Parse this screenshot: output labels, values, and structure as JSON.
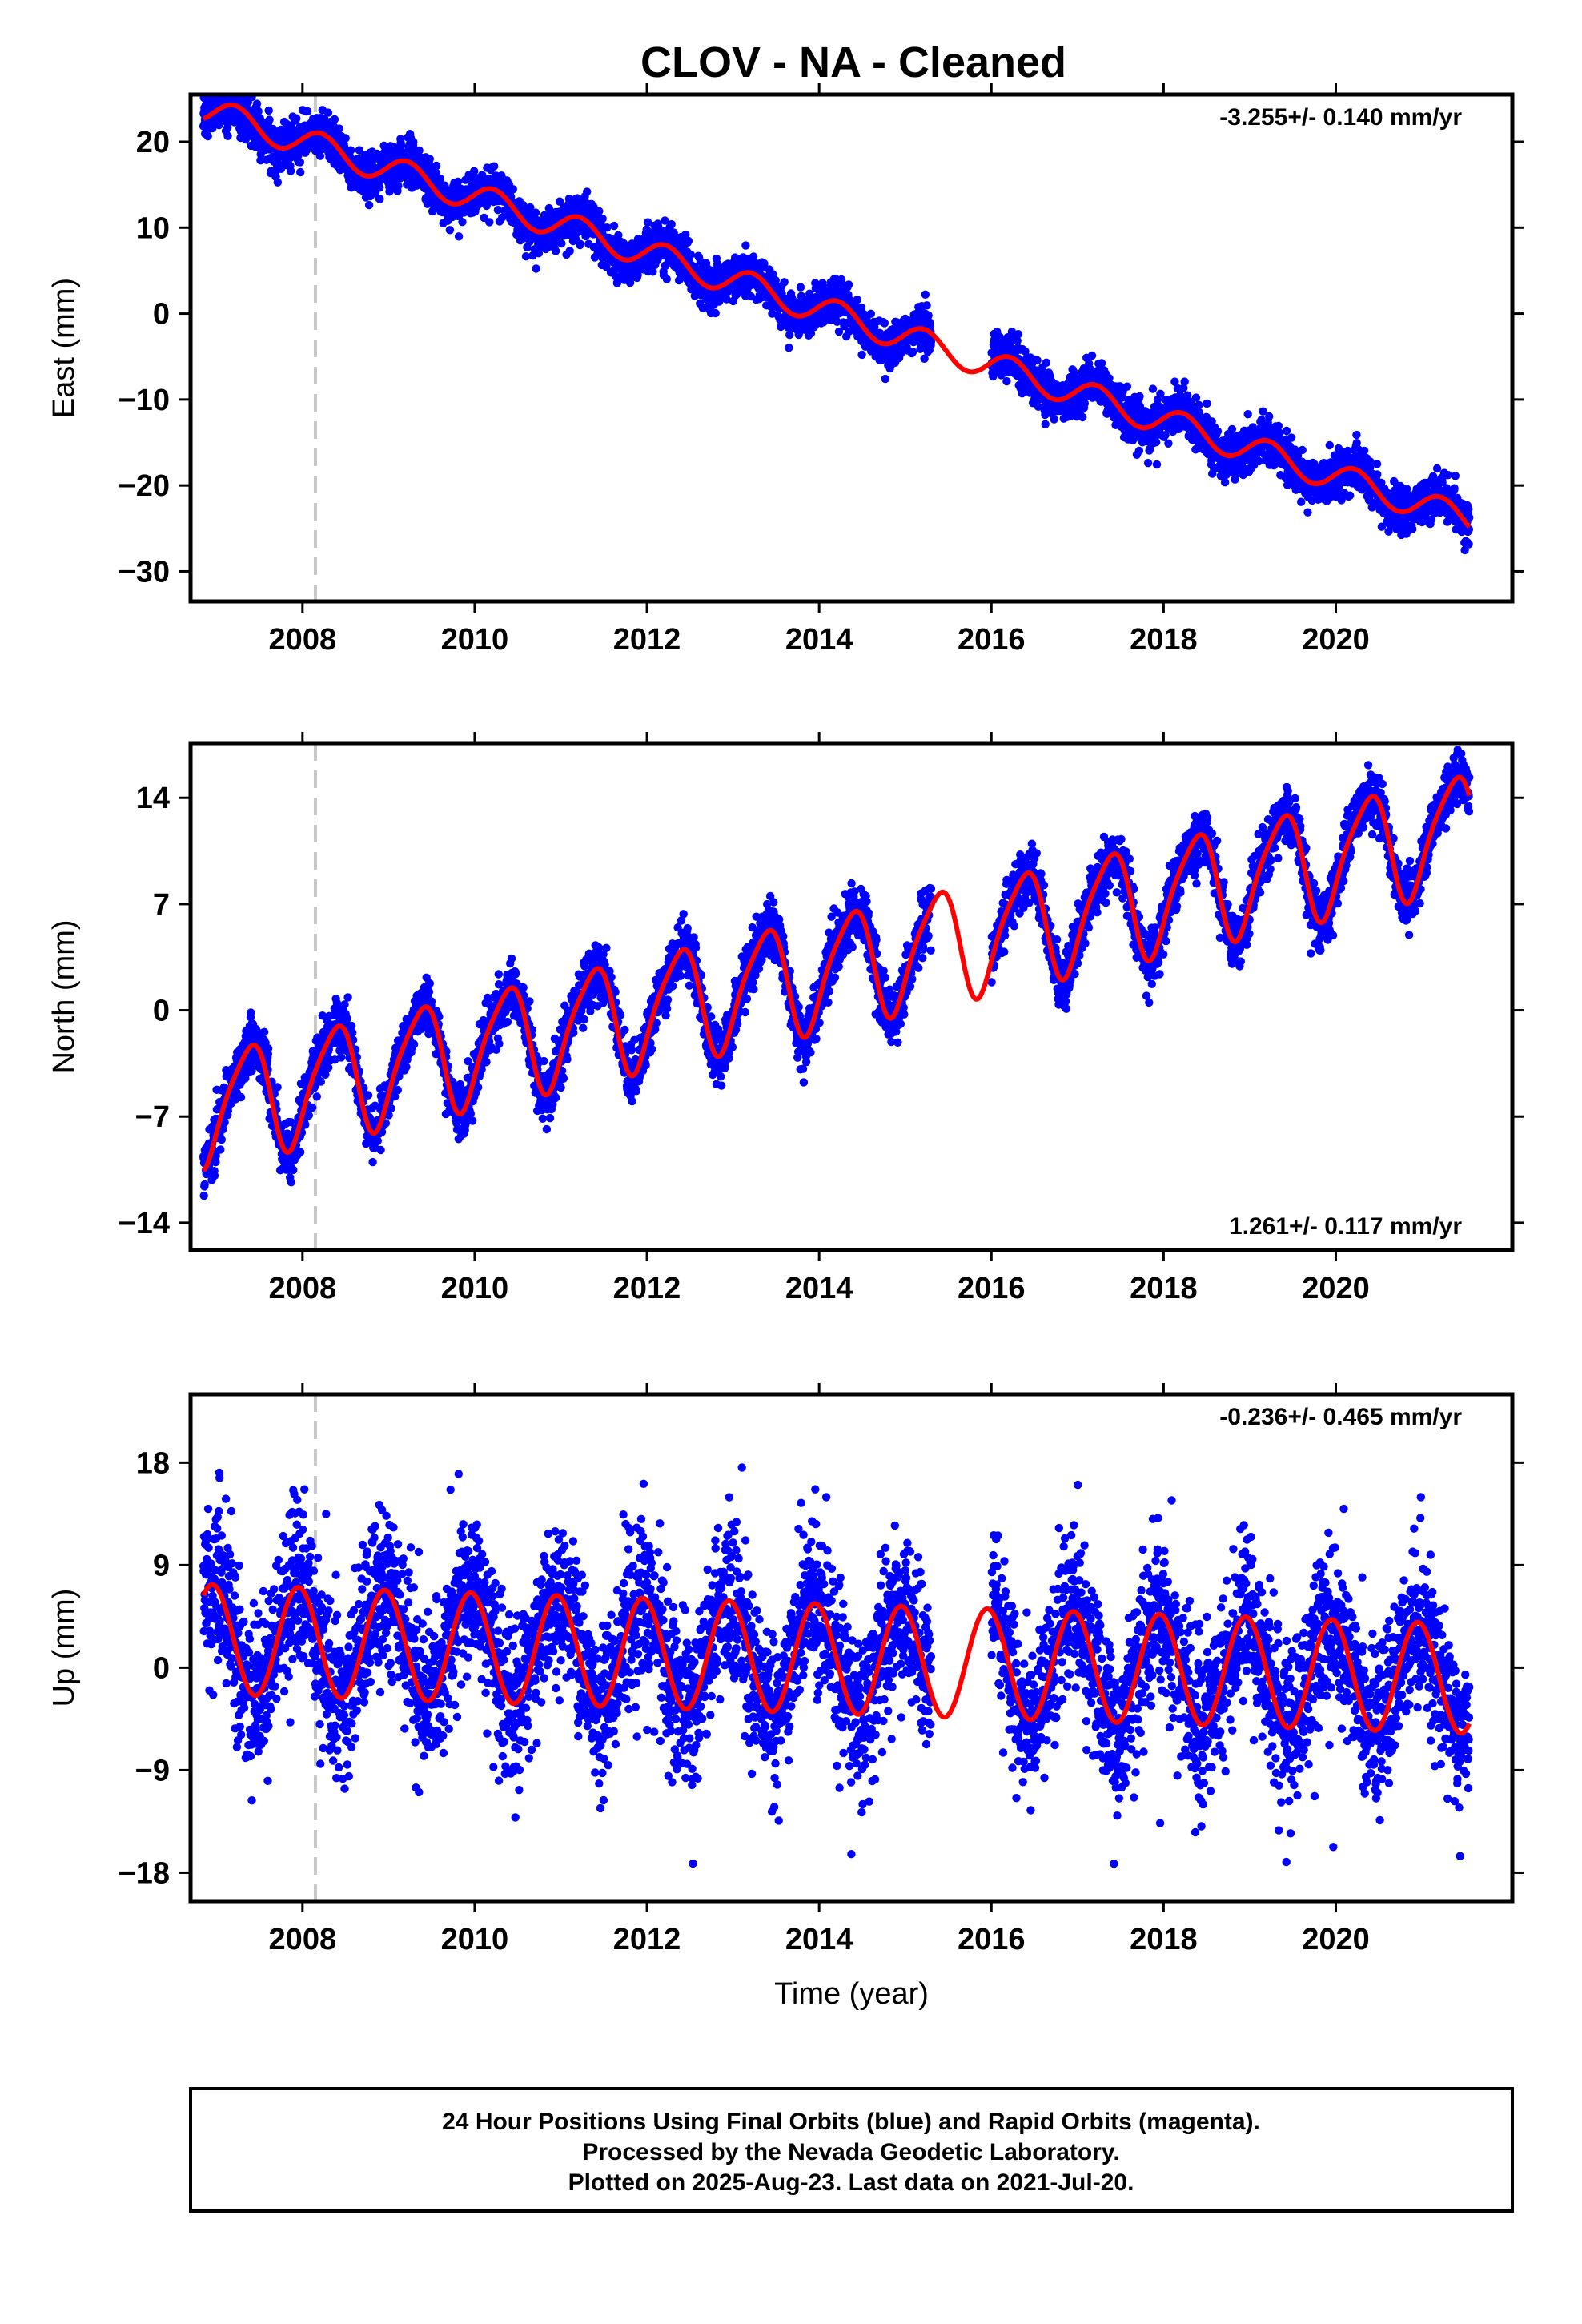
{
  "title": "CLOV  - NA - Cleaned",
  "footer": {
    "line1": "24 Hour Positions Using Final Orbits (blue) and Rapid Orbits (magenta).",
    "line2": "Processed by the Nevada Geodetic Laboratory.",
    "line3": "Plotted on 2025-Aug-23. Last data on 2021-Jul-20."
  },
  "colors": {
    "data": "#0000ff",
    "model": "#ff0000",
    "event_line": "#c8c8c8",
    "frame": "#000000"
  },
  "chart_data": [
    {
      "type": "scatter",
      "ylabel": "East (mm)",
      "xlabel": "",
      "xlim": [
        2006.7,
        2022.05
      ],
      "ylim": [
        -33.5,
        25.5
      ],
      "xticks": [
        2008,
        2010,
        2012,
        2014,
        2016,
        2018,
        2020
      ],
      "yticks": [
        20,
        10,
        0,
        -10,
        -20,
        -30
      ],
      "rate_text": "-3.255+/- 0.140 mm/yr",
      "rate_position": "top-right",
      "event_line_x": 2008.15,
      "data_start": 2006.85,
      "data_end": 2021.55,
      "gap": [
        2015.3,
        2016.0
      ],
      "series": [
        {
          "kind": "points",
          "model": {
            "intercept": 23.8,
            "start": 2006.85,
            "rate": -3.255,
            "annual_sin": 1.6,
            "annual_cos": 0.3
          },
          "scatter_sd": 1.3
        },
        {
          "kind": "line",
          "model": "fit"
        }
      ]
    },
    {
      "type": "scatter",
      "ylabel": "North (mm)",
      "xlabel": "",
      "xlim": [
        2006.7,
        2022.05
      ],
      "ylim": [
        -15.8,
        17.6
      ],
      "xticks": [
        2008,
        2010,
        2012,
        2014,
        2016,
        2018,
        2020
      ],
      "yticks": [
        14,
        7,
        0,
        -7,
        -14
      ],
      "rate_text": "1.261+/- 0.117 mm/yr",
      "rate_position": "bottom-right",
      "event_line_x": 2008.15,
      "data_start": 2006.85,
      "data_end": 2021.55,
      "gap": [
        2015.3,
        2016.0
      ],
      "series": [
        {
          "kind": "points",
          "model": {
            "intercept": -6.5,
            "start": 2006.85,
            "rate": 1.261,
            "annual_sin": 2.7,
            "annual_cos": -2.4,
            "semiannual_sin": 0.3,
            "semiannual_cos": 0.6
          },
          "scatter_sd": 0.9
        },
        {
          "kind": "line",
          "model": "fit"
        }
      ]
    },
    {
      "type": "scatter",
      "ylabel": "Up (mm)",
      "xlabel": "Time (year)",
      "xlim": [
        2006.7,
        2022.05
      ],
      "ylim": [
        -20.5,
        24.0
      ],
      "xticks": [
        2008,
        2010,
        2012,
        2014,
        2016,
        2018,
        2020
      ],
      "yticks": [
        18,
        9,
        0,
        -9,
        -18
      ],
      "rate_text": "-0.236+/- 0.465 mm/yr",
      "rate_position": "top-right",
      "event_line_x": 2008.15,
      "data_start": 2006.85,
      "data_end": 2021.55,
      "gap": [
        2015.3,
        2016.0
      ],
      "series": [
        {
          "kind": "points",
          "model": {
            "intercept": 2.5,
            "start": 2006.85,
            "rate": -0.236,
            "annual_sin": -1.4,
            "annual_cos": 4.6
          },
          "scatter_sd": 3.4
        },
        {
          "kind": "line",
          "model": "fit"
        }
      ]
    }
  ]
}
